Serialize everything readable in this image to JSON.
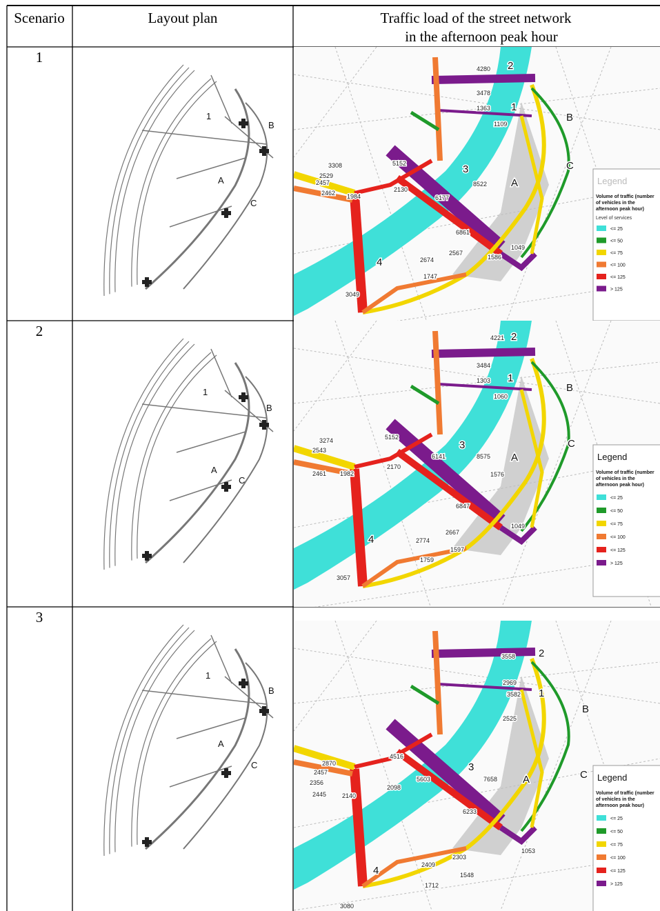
{
  "header": {
    "scenario": "Scenario",
    "layout": "Layout plan",
    "traffic": [
      "Traffic load of the street network",
      "in the afternoon peak hour"
    ]
  },
  "rows": [
    {
      "scenario": "1",
      "plan_labels": [
        "1",
        "A",
        "B",
        "C"
      ],
      "map": {
        "road_names": [
          "2",
          "1",
          "3",
          "4",
          "A",
          "B",
          "C"
        ],
        "volumes": [
          "4280",
          "3478",
          "1363",
          "1109",
          "8522",
          "6177",
          "2130",
          "5152",
          "3308",
          "2529",
          "2457",
          "2462",
          "1984",
          "2674",
          "2567",
          "1586",
          "1747",
          "3049",
          "6861",
          "1049"
        ]
      },
      "legend": {
        "title": "Legend",
        "description": [
          "Volume of traffic (number",
          "of vehicles in the",
          "afternoon peak hour)"
        ],
        "subtitle": "Level of services",
        "items": [
          {
            "label": "<= 25",
            "color": "#3fe0d8"
          },
          {
            "label": "<= 50",
            "color": "#1f9a2a"
          },
          {
            "label": "<= 75",
            "color": "#f2d600"
          },
          {
            "label": "<= 100",
            "color": "#f07a32"
          },
          {
            "label": "<= 125",
            "color": "#e5221d"
          },
          {
            "label": "> 125",
            "color": "#7b1b8c"
          }
        ]
      }
    },
    {
      "scenario": "2",
      "plan_labels": [
        "1",
        "A",
        "B",
        "C"
      ],
      "map": {
        "road_names": [
          "2",
          "1",
          "3",
          "4",
          "A",
          "B",
          "C"
        ],
        "volumes": [
          "4221",
          "3484",
          "1303",
          "1060",
          "8575",
          "6141",
          "2170",
          "5152",
          "3274",
          "2543",
          "2461",
          "1982",
          "2774",
          "2667",
          "1597",
          "1759",
          "3057",
          "6847",
          "1049",
          "1576"
        ]
      },
      "legend": {
        "title": "Legend",
        "description": [
          "Volume of traffic (number",
          "of vehicles in the",
          "afternoon peak hour)"
        ],
        "items": [
          {
            "label": "<= 25",
            "color": "#3fe0d8"
          },
          {
            "label": "<= 50",
            "color": "#1f9a2a"
          },
          {
            "label": "<= 75",
            "color": "#f2d600"
          },
          {
            "label": "<= 100",
            "color": "#f07a32"
          },
          {
            "label": "<= 125",
            "color": "#e5221d"
          },
          {
            "label": "> 125",
            "color": "#7b1b8c"
          }
        ]
      }
    },
    {
      "scenario": "3",
      "plan_labels": [
        "1",
        "A",
        "B",
        "C"
      ],
      "map": {
        "road_names": [
          "2",
          "1",
          "3",
          "4",
          "A",
          "B",
          "C"
        ],
        "volumes": [
          "3558",
          "2969",
          "3582",
          "2525",
          "7658",
          "5603",
          "2098",
          "4516",
          "2870",
          "2457",
          "2356",
          "2445",
          "2140",
          "2409",
          "2303",
          "1548",
          "1712",
          "3080",
          "6233",
          "1053"
        ]
      },
      "legend": {
        "title": "Legend",
        "description": [
          "Volume of traffic (number",
          "of vehicles in the",
          "afternoon peak hour)"
        ],
        "items": [
          {
            "label": "<= 25",
            "color": "#3fe0d8"
          },
          {
            "label": "<= 50",
            "color": "#1f9a2a"
          },
          {
            "label": "<= 75",
            "color": "#f2d600"
          },
          {
            "label": "<= 100",
            "color": "#f07a32"
          },
          {
            "label": "<= 125",
            "color": "#e5221d"
          },
          {
            "label": "> 125",
            "color": "#7b1b8c"
          }
        ]
      }
    }
  ]
}
